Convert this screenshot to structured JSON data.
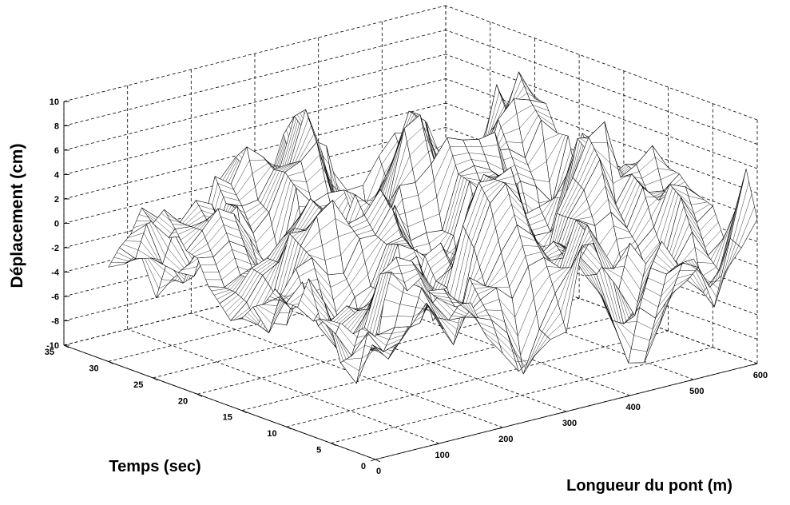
{
  "chart_data": {
    "type": "surface",
    "title": "",
    "xlabel": "Longueur du pont (m)",
    "ylabel": "Temps (sec)",
    "zlabel": "Déplacement (cm)",
    "xlim": [
      0,
      600
    ],
    "ylim": [
      0,
      35
    ],
    "zlim": [
      -10,
      10
    ],
    "x_ticks": [
      0,
      100,
      200,
      300,
      400,
      500,
      600
    ],
    "y_ticks": [
      0,
      5,
      10,
      15,
      20,
      25,
      30,
      35
    ],
    "z_ticks": [
      -10,
      -8,
      -6,
      -4,
      -2,
      0,
      2,
      4,
      6,
      8,
      10
    ],
    "grid": true,
    "mesh_color": "#000000",
    "face_color": "#ffffff",
    "x_samples": [
      0,
      25,
      50,
      75,
      100,
      125,
      150,
      175,
      200,
      225,
      250,
      275,
      300,
      325,
      350,
      375,
      400,
      425,
      450,
      475,
      500,
      525,
      550,
      575,
      600
    ],
    "y_samples": [
      0,
      1.25,
      2.5,
      3.75,
      5,
      6.25,
      7.5,
      8.75,
      10,
      11.25,
      12.5,
      13.75,
      15,
      16.25,
      17.5,
      18.75,
      20,
      21.25,
      22.5,
      23.75,
      25,
      26.25,
      27.5,
      28.75,
      30
    ]
  }
}
